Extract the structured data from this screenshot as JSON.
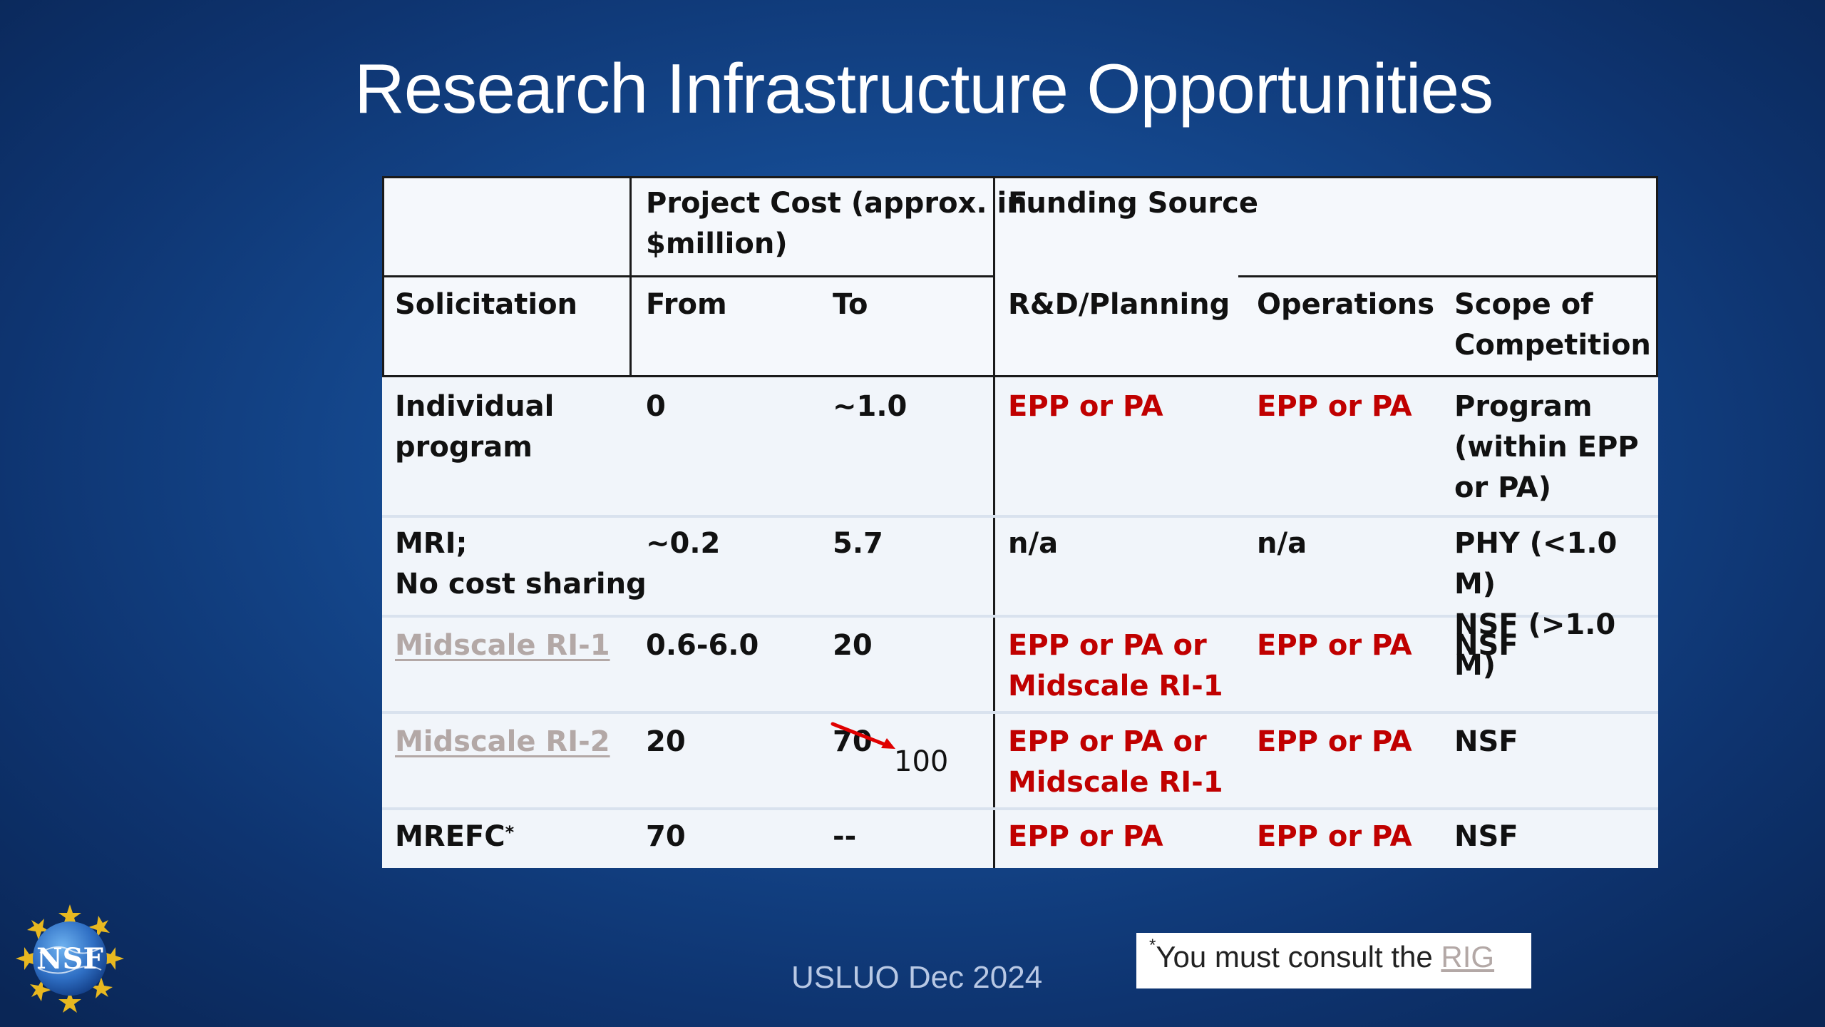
{
  "slide": {
    "title": "Research Infrastructure Opportunities",
    "footer": "USLUO  Dec 2024",
    "logo_text": "NSF"
  },
  "table": {
    "header": {
      "project_cost": "Project Cost (approx. in\n$million)",
      "funding_source": "Funding Source",
      "solicitation": "Solicitation",
      "from": "From",
      "to": "To",
      "rd_planning": "R&D/Planning",
      "operations": "Operations",
      "scope": "Scope of\nCompetition"
    },
    "rows": [
      {
        "solicitation": "Individual\nprogram",
        "from": "0",
        "to": "~1.0",
        "rd": "EPP or PA",
        "ops": "EPP or PA",
        "scope": "Program\n(within EPP\nor PA)"
      },
      {
        "solicitation": "MRI;\nNo cost sharing",
        "from": "~0.2",
        "to": "5.7",
        "rd": "n/a",
        "ops": "n/a",
        "scope": "PHY (<1.0 M)\nNSF (>1.0 M)"
      },
      {
        "solicitation": "Midscale RI-1",
        "from": "0.6-6.0",
        "to": "20",
        "rd": "EPP or PA or\nMidscale RI-1",
        "ops": "EPP or PA",
        "scope": "NSF"
      },
      {
        "solicitation": "Midscale RI-2",
        "from": "20",
        "to": "70",
        "to_correction": "100",
        "rd": "EPP or PA or\nMidscale RI-1",
        "ops": "EPP or PA",
        "scope": "NSF"
      },
      {
        "solicitation": "MREFC",
        "solicitation_mark": "*",
        "from": "70",
        "to": "--",
        "rd": "EPP or PA",
        "ops": "EPP or PA",
        "scope": "NSF"
      }
    ]
  },
  "note": {
    "mark": "*",
    "text": "You must consult the ",
    "link": "RIG"
  },
  "colors": {
    "background": "#154a91",
    "funding_red": "#c00000",
    "link_gray": "#b3a8a6"
  }
}
